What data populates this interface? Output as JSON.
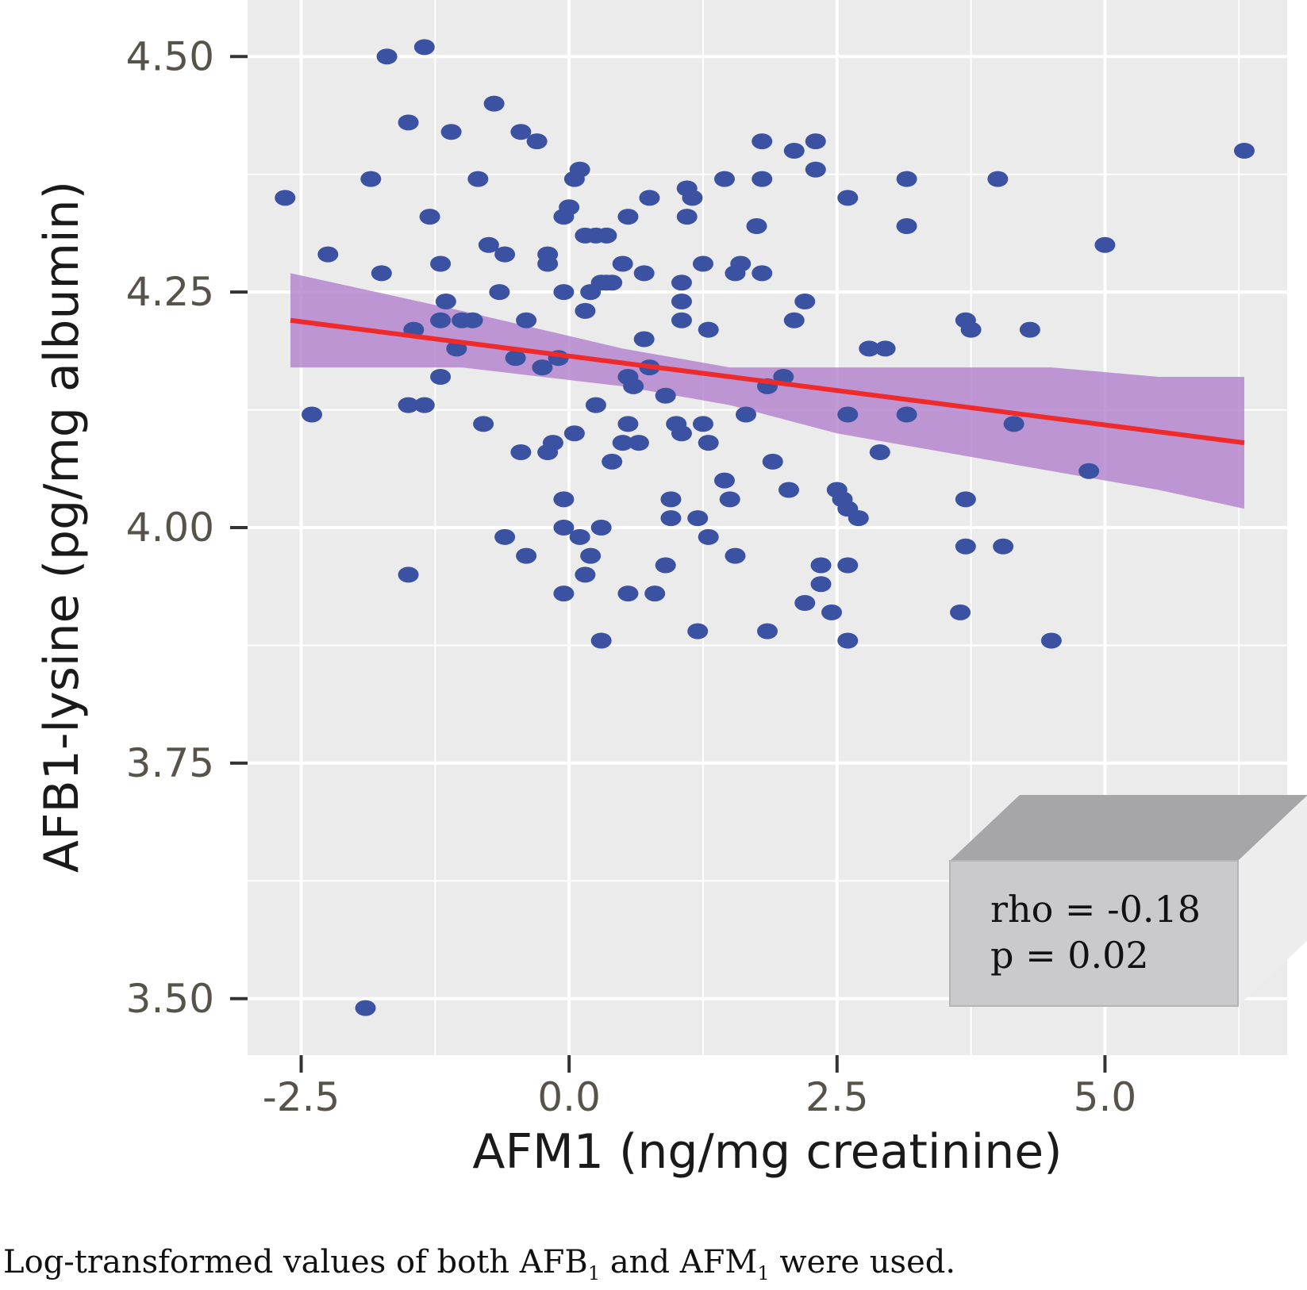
{
  "chart_data": {
    "type": "scatter",
    "xlabel": "AFM1 (ng/mg creatinine)",
    "ylabel": "AFB1-lysine (pg/mg albumin)",
    "xlim": [
      -3.0,
      6.7
    ],
    "ylim": [
      3.44,
      4.56
    ],
    "x_ticks": [
      -2.5,
      0.0,
      2.5,
      5.0
    ],
    "x_tick_labels": [
      "-2.5",
      "0.0",
      "2.5",
      "5.0"
    ],
    "y_ticks": [
      3.5,
      3.75,
      4.0,
      4.25,
      4.5
    ],
    "y_tick_labels": [
      "3.50",
      "3.75",
      "4.00",
      "4.25",
      "4.50"
    ],
    "grid": true,
    "background_color": "#ebebeb",
    "point_color": "#3b52a3",
    "fit_line_color": "#ee2a2a",
    "ci_band_color": "#b07ccc",
    "fit_line": {
      "x": [
        -2.6,
        6.3
      ],
      "y": [
        4.22,
        4.09
      ]
    },
    "ci_band": {
      "x": [
        -2.6,
        -1.0,
        0.5,
        1.5,
        2.5,
        3.5,
        4.5,
        5.5,
        6.3
      ],
      "lower": [
        4.17,
        4.17,
        4.15,
        4.13,
        4.1,
        4.08,
        4.06,
        4.04,
        4.02
      ],
      "upper": [
        4.27,
        4.23,
        4.19,
        4.17,
        4.17,
        4.17,
        4.17,
        4.16,
        4.16
      ]
    },
    "annotation": {
      "rho": "rho = -0.18",
      "p": "p = 0.02"
    },
    "points": [
      [
        -2.65,
        4.35
      ],
      [
        -2.4,
        4.12
      ],
      [
        -2.25,
        4.29
      ],
      [
        -1.85,
        4.37
      ],
      [
        -1.7,
        4.5
      ],
      [
        -1.75,
        4.27
      ],
      [
        -1.5,
        4.43
      ],
      [
        -1.35,
        4.51
      ],
      [
        -1.3,
        4.33
      ],
      [
        -1.5,
        3.95
      ],
      [
        -1.45,
        4.21
      ],
      [
        -1.5,
        4.13
      ],
      [
        -1.35,
        4.13
      ],
      [
        -1.2,
        4.28
      ],
      [
        -1.15,
        4.24
      ],
      [
        -1.2,
        4.22
      ],
      [
        -1.1,
        4.42
      ],
      [
        -1.0,
        4.22
      ],
      [
        -1.2,
        4.16
      ],
      [
        -1.05,
        4.19
      ],
      [
        -0.9,
        4.22
      ],
      [
        -0.85,
        4.37
      ],
      [
        -0.8,
        4.11
      ],
      [
        -0.75,
        4.3
      ],
      [
        -0.7,
        4.45
      ],
      [
        -0.65,
        4.25
      ],
      [
        -0.6,
        4.29
      ],
      [
        -0.6,
        3.99
      ],
      [
        -0.45,
        4.42
      ],
      [
        -0.5,
        4.18
      ],
      [
        -0.45,
        4.08
      ],
      [
        -0.4,
        3.97
      ],
      [
        -0.4,
        4.22
      ],
      [
        -0.3,
        4.41
      ],
      [
        -0.25,
        4.17
      ],
      [
        -0.2,
        4.29
      ],
      [
        -0.2,
        4.28
      ],
      [
        -0.2,
        4.08
      ],
      [
        -0.15,
        4.09
      ],
      [
        -0.1,
        4.18
      ],
      [
        -0.05,
        4.33
      ],
      [
        -0.05,
        4.25
      ],
      [
        0.0,
        4.34
      ],
      [
        -0.05,
        4.03
      ],
      [
        -0.05,
        4.0
      ],
      [
        -0.05,
        3.93
      ],
      [
        0.05,
        4.37
      ],
      [
        0.05,
        4.1
      ],
      [
        0.1,
        4.38
      ],
      [
        0.1,
        3.99
      ],
      [
        0.15,
        4.31
      ],
      [
        0.15,
        4.23
      ],
      [
        0.15,
        3.95
      ],
      [
        0.2,
        4.25
      ],
      [
        0.2,
        3.97
      ],
      [
        0.25,
        4.31
      ],
      [
        0.25,
        4.13
      ],
      [
        0.3,
        4.26
      ],
      [
        0.35,
        4.31
      ],
      [
        0.35,
        4.26
      ],
      [
        0.3,
        4.0
      ],
      [
        0.3,
        3.88
      ],
      [
        0.4,
        4.26
      ],
      [
        0.4,
        4.07
      ],
      [
        0.5,
        4.28
      ],
      [
        0.55,
        4.33
      ],
      [
        0.5,
        4.09
      ],
      [
        0.55,
        4.11
      ],
      [
        0.55,
        4.16
      ],
      [
        0.6,
        4.15
      ],
      [
        0.65,
        4.09
      ],
      [
        0.55,
        3.93
      ],
      [
        0.7,
        4.27
      ],
      [
        0.7,
        4.2
      ],
      [
        0.75,
        4.35
      ],
      [
        0.75,
        4.17
      ],
      [
        0.8,
        3.93
      ],
      [
        0.9,
        4.14
      ],
      [
        0.9,
        3.96
      ],
      [
        0.95,
        4.03
      ],
      [
        0.95,
        4.01
      ],
      [
        1.0,
        4.11
      ],
      [
        1.05,
        4.26
      ],
      [
        1.05,
        4.24
      ],
      [
        1.05,
        4.22
      ],
      [
        1.05,
        4.1
      ],
      [
        1.1,
        4.36
      ],
      [
        1.1,
        4.33
      ],
      [
        1.15,
        4.35
      ],
      [
        1.2,
        4.01
      ],
      [
        1.2,
        3.89
      ],
      [
        1.25,
        4.28
      ],
      [
        1.25,
        4.11
      ],
      [
        1.3,
        4.21
      ],
      [
        1.3,
        4.09
      ],
      [
        1.3,
        3.99
      ],
      [
        1.45,
        4.37
      ],
      [
        1.45,
        4.05
      ],
      [
        1.5,
        4.03
      ],
      [
        1.55,
        4.27
      ],
      [
        1.55,
        3.97
      ],
      [
        1.6,
        4.28
      ],
      [
        1.65,
        4.12
      ],
      [
        1.75,
        4.32
      ],
      [
        1.8,
        4.41
      ],
      [
        1.8,
        4.37
      ],
      [
        1.8,
        4.27
      ],
      [
        1.85,
        4.15
      ],
      [
        1.85,
        3.89
      ],
      [
        1.9,
        4.07
      ],
      [
        2.0,
        4.16
      ],
      [
        2.05,
        4.04
      ],
      [
        2.1,
        4.22
      ],
      [
        2.1,
        4.4
      ],
      [
        2.2,
        4.24
      ],
      [
        2.2,
        3.92
      ],
      [
        2.3,
        4.41
      ],
      [
        2.3,
        4.38
      ],
      [
        2.35,
        3.96
      ],
      [
        2.35,
        3.94
      ],
      [
        2.45,
        3.91
      ],
      [
        2.5,
        4.04
      ],
      [
        2.55,
        4.03
      ],
      [
        2.6,
        4.35
      ],
      [
        2.6,
        4.12
      ],
      [
        2.6,
        4.02
      ],
      [
        2.6,
        3.96
      ],
      [
        2.6,
        3.88
      ],
      [
        2.7,
        4.01
      ],
      [
        2.8,
        4.19
      ],
      [
        2.9,
        4.08
      ],
      [
        2.95,
        4.19
      ],
      [
        3.15,
        4.37
      ],
      [
        3.15,
        4.32
      ],
      [
        3.15,
        4.12
      ],
      [
        3.7,
        4.22
      ],
      [
        3.75,
        4.21
      ],
      [
        3.7,
        4.03
      ],
      [
        3.7,
        3.98
      ],
      [
        3.65,
        3.91
      ],
      [
        4.0,
        4.37
      ],
      [
        4.05,
        3.98
      ],
      [
        4.15,
        4.11
      ],
      [
        4.3,
        4.21
      ],
      [
        4.5,
        3.88
      ],
      [
        4.85,
        4.06
      ],
      [
        5.0,
        4.3
      ],
      [
        6.3,
        4.4
      ],
      [
        -1.9,
        3.49
      ]
    ]
  },
  "caption": {
    "text_start": "Log-transformed values of both AFB",
    "sub1": "1",
    "text_mid": " and AFM",
    "sub2": "1",
    "text_end": " were used."
  }
}
